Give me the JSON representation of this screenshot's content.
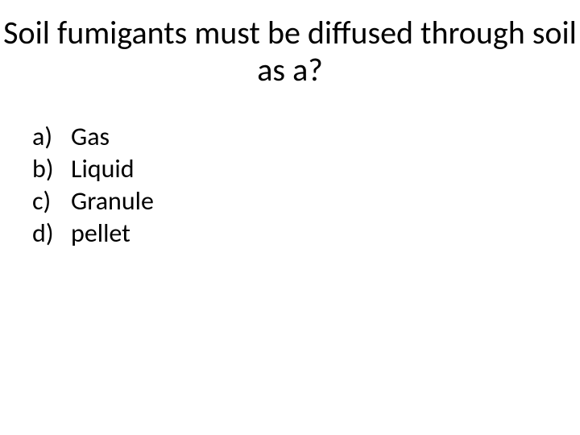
{
  "slide": {
    "title": "Soil fumigants must be diffused through soil as a?",
    "title_fontsize": 40,
    "title_color": "#000000",
    "background_color": "#ffffff",
    "options": [
      {
        "marker": "a)",
        "text": "Gas"
      },
      {
        "marker": "b)",
        "text": "Liquid"
      },
      {
        "marker": "c)",
        "text": "Granule"
      },
      {
        "marker": "d)",
        "text": "pellet"
      }
    ],
    "option_fontsize": 32,
    "option_color": "#000000"
  }
}
